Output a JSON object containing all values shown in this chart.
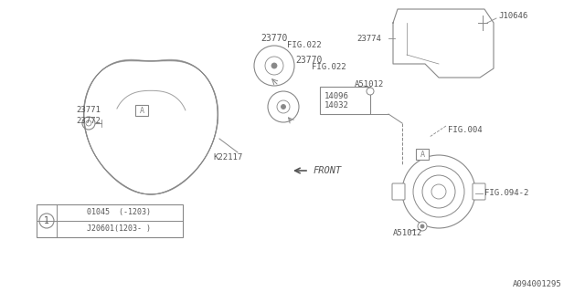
{
  "bg_color": "#ffffff",
  "line_color": "#888888",
  "text_color": "#555555",
  "fig_width": 6.4,
  "fig_height": 3.2,
  "dpi": 100,
  "labels": {
    "23770_top": "23770",
    "fig022_top": "FIG.022",
    "23770_bot": "23770",
    "fig022_bot": "FIG.022",
    "23771": "23771",
    "23772": "23772",
    "K22117": "K22117",
    "A_belt": "A",
    "14096": "14096",
    "14032": "14032",
    "A51012_top": "A51012",
    "23774": "23774",
    "J10646": "J10646",
    "FIG004": "FIG.004",
    "FIG094": "FIG.094-2",
    "A_alt": "A",
    "A51012_bot": "A51012",
    "FRONT": "FRONT",
    "part1": "01045  (-1203)",
    "part2": "J20601(1203- )",
    "ref_num": "1",
    "doc_num": "A094001295"
  }
}
